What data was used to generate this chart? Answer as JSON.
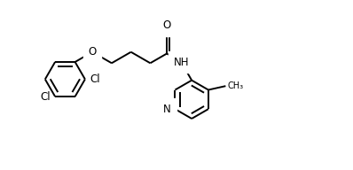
{
  "bg_color": "#ffffff",
  "line_color": "#000000",
  "fig_width": 3.98,
  "fig_height": 1.92,
  "dpi": 100,
  "font_size": 8.5,
  "line_width": 1.4,
  "xlim": [
    -0.5,
    8.5
  ],
  "ylim": [
    -2.2,
    2.2
  ]
}
